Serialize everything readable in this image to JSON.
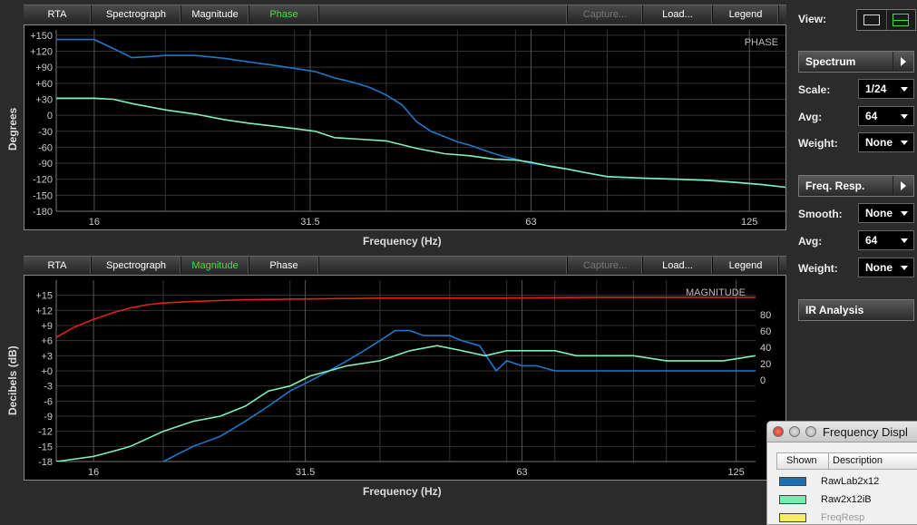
{
  "top_tabs": [
    {
      "label": "RTA",
      "state": "normal"
    },
    {
      "label": "Spectrograph",
      "state": "normal"
    },
    {
      "label": "Magnitude",
      "state": "normal"
    },
    {
      "label": "Phase",
      "state": "active"
    },
    {
      "label": "",
      "state": "spacer"
    },
    {
      "label": "Capture...",
      "state": "disabled"
    },
    {
      "label": "Load...",
      "state": "normal"
    },
    {
      "label": "Legend",
      "state": "normal"
    }
  ],
  "bottom_tabs": [
    {
      "label": "RTA",
      "state": "normal"
    },
    {
      "label": "Spectrograph",
      "state": "normal"
    },
    {
      "label": "Magnitude",
      "state": "active"
    },
    {
      "label": "Phase",
      "state": "normal"
    },
    {
      "label": "",
      "state": "spacer"
    },
    {
      "label": "Capture...",
      "state": "disabled"
    },
    {
      "label": "Load...",
      "state": "normal"
    },
    {
      "label": "Legend",
      "state": "normal"
    }
  ],
  "sidebar": {
    "view_label": "View:",
    "spectrum_section": "Spectrum",
    "scale_label": "Scale:",
    "scale_value": "1/24",
    "avg_label": "Avg:",
    "avg_value": "64",
    "weight_label": "Weight:",
    "weight_value": "None",
    "freq_resp_section": "Freq. Resp.",
    "smooth_label": "Smooth:",
    "smooth_value": "None",
    "avg2_label": "Avg:",
    "avg2_value": "64",
    "weight2_label": "Weight:",
    "weight2_value": "None",
    "ir_analysis": "IR Analysis"
  },
  "legend_window": {
    "title": "Frequency Displ",
    "col_shown": "Shown",
    "col_description": "Description",
    "rows": [
      {
        "name": "RawLab2x12",
        "color": "#1a6fb0",
        "enabled": true
      },
      {
        "name": "Raw2x12iB",
        "color": "#6ff2b0",
        "enabled": true
      },
      {
        "name": "FreqResp",
        "color": "#f5f05a",
        "enabled": false
      }
    ]
  },
  "chart_data": [
    {
      "type": "line",
      "title": "PHASE",
      "xlabel": "Frequency (Hz)",
      "ylabel": "Degrees",
      "x_scale": "log",
      "xlim": [
        14.2,
        140
      ],
      "ylim": [
        -180,
        160
      ],
      "x_ticks": [
        16,
        31.5,
        63,
        125
      ],
      "y_ticks": [
        "+150",
        "+120",
        "+90",
        "+60",
        "+30",
        "0",
        "-30",
        "-60",
        "-90",
        "-120",
        "-150",
        "-180"
      ],
      "y_tick_values": [
        150,
        120,
        90,
        60,
        30,
        0,
        -30,
        -60,
        -90,
        -120,
        -150,
        -180
      ],
      "grid": true,
      "series": [
        {
          "name": "RawLab2x12",
          "color": "#1f78c8",
          "x": [
            14.2,
            16,
            17,
            18,
            19,
            20,
            22,
            24,
            26,
            28,
            30,
            32,
            34,
            36,
            38,
            40,
            42,
            44,
            46,
            48,
            50,
            52,
            55,
            58,
            60,
            63,
            67,
            70,
            75,
            80,
            90,
            100,
            110,
            120,
            130,
            140
          ],
          "y": [
            142,
            142,
            125,
            108,
            110,
            112,
            112,
            107,
            100,
            94,
            88,
            82,
            70,
            62,
            52,
            38,
            20,
            -12,
            -30,
            -40,
            -50,
            -56,
            -68,
            -78,
            -82,
            -90,
            -95,
            -100,
            -108,
            -115,
            -118,
            -120,
            -122,
            -126,
            -130,
            -135
          ]
        },
        {
          "name": "Raw2x12iB",
          "color": "#7ff0b8",
          "x": [
            14.2,
            16,
            17,
            18,
            20,
            22,
            24,
            26,
            28,
            30,
            32,
            34,
            36,
            40,
            44,
            48,
            52,
            56,
            60,
            63,
            67,
            70,
            75,
            80,
            90,
            100,
            110,
            120,
            130,
            140
          ],
          "y": [
            32,
            32,
            30,
            22,
            10,
            2,
            -8,
            -15,
            -20,
            -25,
            -30,
            -42,
            -44,
            -48,
            -62,
            -72,
            -76,
            -82,
            -84,
            -88,
            -96,
            -100,
            -108,
            -115,
            -118,
            -120,
            -122,
            -126,
            -130,
            -135
          ]
        }
      ]
    },
    {
      "type": "line",
      "title": "MAGNITUDE",
      "xlabel": "Frequency (Hz)",
      "ylabel": "Decibels (dB)",
      "x_scale": "log",
      "xlim": [
        14.2,
        133
      ],
      "ylim": [
        -18,
        18
      ],
      "x_ticks": [
        16,
        31.5,
        63,
        125
      ],
      "y_ticks": [
        "+15",
        "+12",
        "+9",
        "+6",
        "+3",
        "+0",
        "-3",
        "-6",
        "-9",
        "-12",
        "-15",
        "-18"
      ],
      "y_tick_values": [
        15,
        12,
        9,
        6,
        3,
        0,
        -3,
        -6,
        -9,
        -12,
        -15,
        -18
      ],
      "y2_ticks": [
        "80",
        "60",
        "40",
        "20",
        "0"
      ],
      "y2_tick_values": [
        80,
        60,
        40,
        20,
        0
      ],
      "y2lim": [
        -100,
        122
      ],
      "grid": true,
      "series": [
        {
          "name": "RawLab2x12",
          "color": "#1f78c8",
          "x": [
            20,
            22,
            24,
            26,
            28,
            30,
            32,
            34,
            36,
            38,
            40,
            42,
            44,
            46,
            48,
            50,
            52,
            55,
            58,
            60,
            63,
            66,
            70,
            75,
            80,
            90,
            100,
            110,
            120,
            125,
            133
          ],
          "y": [
            -18,
            -15,
            -13,
            -10,
            -7,
            -4,
            -2,
            0,
            2,
            4,
            6,
            8,
            8,
            7,
            7,
            7,
            6,
            5,
            0,
            2,
            1,
            1,
            0,
            0,
            0,
            0,
            0,
            0,
            0,
            0,
            0
          ]
        },
        {
          "name": "Raw2x12iB",
          "color": "#7ff0b8",
          "x": [
            14.2,
            16,
            17,
            18,
            20,
            22,
            24,
            26,
            28,
            30,
            32,
            34,
            36,
            40,
            44,
            48,
            52,
            56,
            60,
            63,
            67,
            70,
            75,
            80,
            90,
            100,
            110,
            120,
            133
          ],
          "y": [
            -18,
            -17,
            -16,
            -15,
            -12,
            -10,
            -9,
            -7,
            -4,
            -3,
            -1,
            0,
            1,
            2,
            4,
            5,
            4,
            3,
            4,
            4,
            4,
            4,
            3,
            3,
            3,
            2,
            2,
            2,
            3
          ]
        },
        {
          "name": "FreqResp",
          "color": "#e02020",
          "axis": "y2",
          "x": [
            14.2,
            15,
            16,
            17,
            18,
            19,
            20,
            22,
            26,
            32,
            40,
            50,
            60,
            80,
            100,
            133
          ],
          "y": [
            52,
            64,
            74,
            82,
            88,
            92,
            94,
            96,
            98,
            99,
            100,
            100,
            100,
            101,
            101,
            101
          ]
        }
      ]
    }
  ]
}
